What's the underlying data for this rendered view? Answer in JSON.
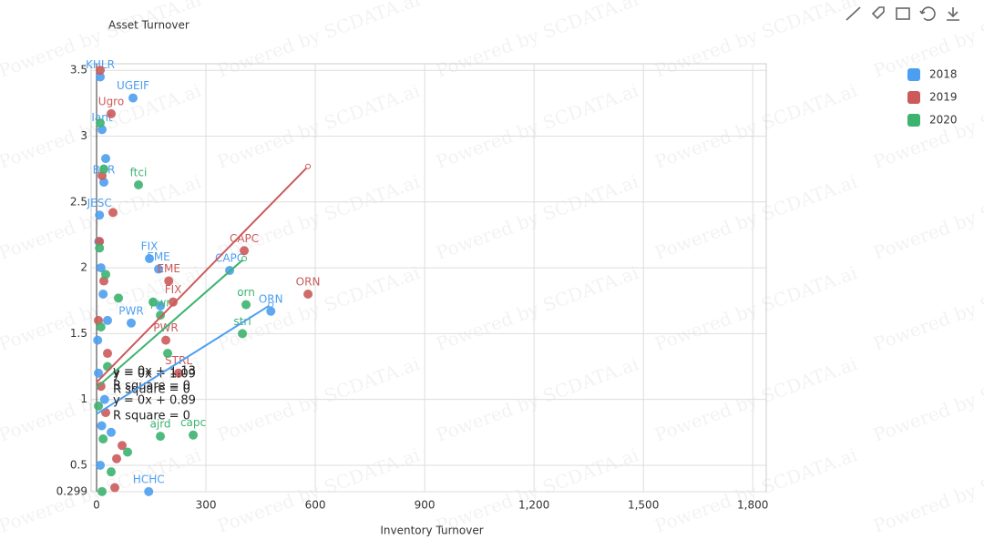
{
  "chart_data": {
    "type": "scatter",
    "watermark": "Powered by SCDATA.ai",
    "y_label": "Asset Turnover",
    "x_label": "Inventory Turnover",
    "xlim": [
      -15,
      1837
    ],
    "ylim": [
      0.299,
      3.55
    ],
    "xticks": [
      0,
      300,
      600,
      900,
      {
        "value": 1200,
        "label": "1,200"
      },
      {
        "value": 1500,
        "label": "1,500"
      },
      {
        "value": 1800,
        "label": "1,800"
      }
    ],
    "yticks": [
      0.299,
      0.5,
      1,
      1.5,
      2,
      2.5,
      3,
      3.5
    ],
    "grid": true,
    "legend": "top-right",
    "series": [
      {
        "name": "2018",
        "color": "#4c9ff0",
        "x": [
          100,
          478,
          365,
          145,
          170,
          143,
          95,
          175,
          10,
          15,
          20,
          25,
          8,
          12,
          18,
          30,
          5,
          22,
          14,
          40,
          10,
          3,
          6
        ],
        "y": [
          3.29,
          1.67,
          1.98,
          2.07,
          1.99,
          0.3,
          1.58,
          1.71,
          3.45,
          3.05,
          2.65,
          2.83,
          2.4,
          2.0,
          1.8,
          1.6,
          1.2,
          1.0,
          0.8,
          0.75,
          0.5,
          1.45,
          2.2
        ],
        "labels": [
          "UGEIF",
          "ORN",
          "CAPC",
          "FIX",
          "EME",
          "HCHC",
          "PWR",
          null,
          "KHLR",
          "Iant",
          "BBR",
          null,
          "JESC",
          null,
          null,
          null,
          null,
          null,
          null,
          null,
          null,
          null,
          null
        ]
      },
      {
        "name": "2019",
        "color": "#cc5a5a",
        "x": [
          580,
          405,
          198,
          210,
          190,
          225,
          10,
          40,
          45,
          15,
          30,
          70,
          55,
          50,
          8,
          20,
          12,
          25,
          5
        ],
        "y": [
          1.8,
          2.13,
          1.9,
          1.74,
          1.45,
          1.2,
          3.5,
          3.17,
          2.42,
          2.7,
          1.35,
          0.65,
          0.55,
          0.33,
          2.2,
          1.9,
          1.1,
          0.9,
          1.6
        ],
        "labels": [
          "ORN",
          "CAPC",
          "EME",
          "FIX",
          "PWR",
          "STRL",
          null,
          "Ugro",
          null,
          null,
          null,
          null,
          null,
          null,
          null,
          null,
          null,
          null,
          null
        ]
      },
      {
        "name": "2020",
        "color": "#3db370",
        "x": [
          115,
          410,
          400,
          265,
          175,
          155,
          175,
          195,
          85,
          15,
          10,
          20,
          8,
          25,
          12,
          30,
          5,
          18,
          40,
          60
        ],
        "y": [
          2.63,
          1.72,
          1.5,
          0.73,
          0.72,
          1.74,
          1.64,
          1.35,
          0.6,
          0.3,
          3.1,
          2.75,
          2.15,
          1.95,
          1.55,
          1.25,
          0.95,
          0.7,
          0.45,
          1.77
        ],
        "labels": [
          "ftci",
          "orn",
          "strl",
          "capc",
          "ajrd",
          null,
          "pwr",
          null,
          null,
          null,
          null,
          null,
          null,
          null,
          null,
          null,
          null,
          null,
          null,
          null
        ]
      }
    ],
    "trendlines": [
      {
        "x": [
          0,
          580
        ],
        "y": [
          1.13,
          2.77
        ],
        "equation": "y = 0x + 1.13",
        "r_square": "R square = 0"
      },
      {
        "x": [
          0,
          405
        ],
        "y": [
          1.09,
          2.07
        ],
        "equation": "y = 0x + 1.09",
        "r_square": "R square = 0"
      },
      {
        "x": [
          0,
          478
        ],
        "y": [
          0.89,
          1.72
        ],
        "equation": "y = 0x + 0.89",
        "r_square": "R square = 0"
      }
    ]
  }
}
